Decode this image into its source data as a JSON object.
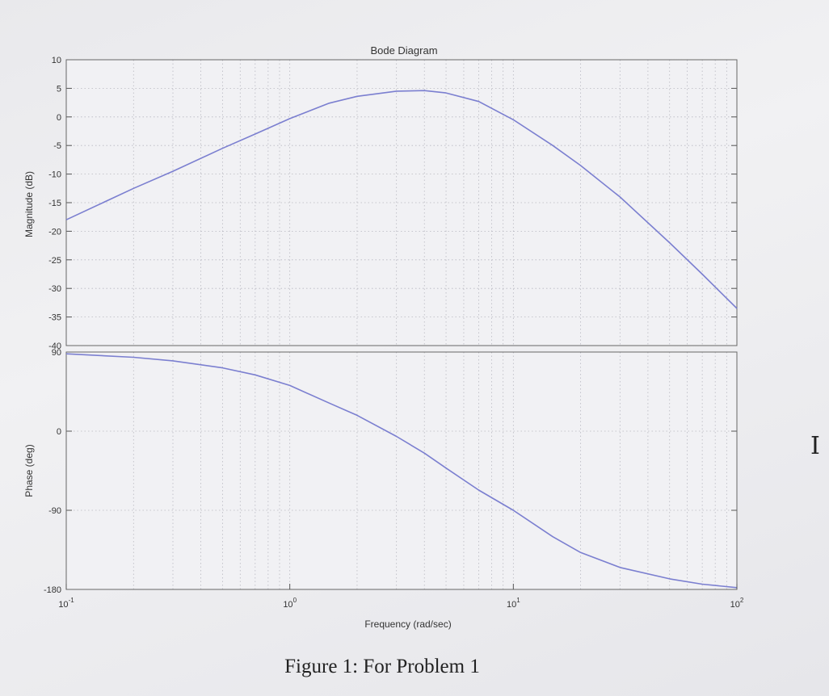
{
  "chart_data": {
    "type": "line",
    "title": "Bode Diagram",
    "xlabel": "Frequency (rad/sec)",
    "x_scale": "log",
    "xlim": [
      0.1,
      100
    ],
    "x_ticks": [
      {
        "value": 0.1,
        "base": "10",
        "exp": "-1"
      },
      {
        "value": 1,
        "base": "10",
        "exp": "0"
      },
      {
        "value": 10,
        "base": "10",
        "exp": "1"
      },
      {
        "value": 100,
        "base": "10",
        "exp": "2"
      }
    ],
    "grid": true,
    "line_color": "#7b7fd0",
    "panels": [
      {
        "id": "magnitude",
        "ylabel": "Magnitude (dB)",
        "ylim": [
          -40,
          10
        ],
        "y_ticks": [
          10,
          5,
          0,
          -5,
          -10,
          -15,
          -20,
          -25,
          -30,
          -35,
          -40
        ],
        "series": [
          {
            "x": [
              0.1,
              0.2,
              0.3,
              0.5,
              0.7,
              1,
              1.5,
              2,
              3,
              4,
              5,
              7,
              10,
              15,
              20,
              30,
              50,
              70,
              100
            ],
            "y": [
              -18,
              -12.5,
              -9.5,
              -5.5,
              -3,
              -0.3,
              2.4,
              3.6,
              4.5,
              4.6,
              4.2,
              2.7,
              -0.5,
              -5,
              -8.5,
              -14,
              -22,
              -27.5,
              -33.5
            ]
          }
        ]
      },
      {
        "id": "phase",
        "ylabel": "Phase (deg)",
        "ylim": [
          -180,
          90
        ],
        "y_ticks": [
          90,
          0,
          -90,
          -180
        ],
        "series": [
          {
            "x": [
              0.1,
              0.2,
              0.3,
              0.5,
              0.7,
              1,
              1.5,
              2,
              3,
              4,
              5,
              7,
              10,
              15,
              20,
              30,
              50,
              70,
              100
            ],
            "y": [
              88,
              84,
              80,
              72,
              64,
              52,
              32,
              18,
              -6,
              -25,
              -42,
              -67,
              -90,
              -120,
              -138,
              -155,
              -168,
              -174,
              -178
            ]
          }
        ]
      }
    ]
  },
  "caption": "Figure 1: For Problem 1"
}
